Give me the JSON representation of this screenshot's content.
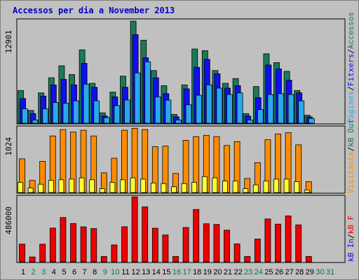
{
  "title": "Accessos per dia a November 2013",
  "colors": {
    "title": "#0000cc",
    "frame_bg": "#c0c0c0",
    "panel_bg": "#c0c0c0",
    "grid": "#9a9a9a",
    "weekday_label": "#000000",
    "weekend_label": "#008040",
    "visits": "#ff8c00",
    "unique_visitors": "#ffff33",
    "pages": "#2aa8ee",
    "hits": "#1010ee",
    "accessos": "#1a7a5a",
    "bandwidth": "#ee0000"
  },
  "right_legend": {
    "panel1": [
      {
        "text": "Pàgines",
        "color": "#2aa8ee"
      },
      {
        "text": "/",
        "color": "#000000"
      },
      {
        "text": "Fitxers",
        "color": "#1010ee"
      },
      {
        "text": "/",
        "color": "#000000"
      },
      {
        "text": "Accessos",
        "color": "#1a7a5a"
      }
    ],
    "panel2": [
      {
        "text": "Visitants",
        "color": "#ff8c00"
      },
      {
        "text": "/",
        "color": "#000000"
      },
      {
        "text": "kB Out",
        "color": "#1a7a5a"
      }
    ],
    "panel3": [
      {
        "text": "kB In",
        "color": "#1010ee"
      },
      {
        "text": "/",
        "color": "#000000"
      },
      {
        "text": "kB F",
        "color": "#ee0000"
      }
    ]
  },
  "chart_data": [
    {
      "type": "bar",
      "panel": "accessos",
      "ylim": [
        0,
        12901
      ],
      "ytick_label": "12901",
      "categories": [
        "1",
        "2",
        "3",
        "4",
        "5",
        "6",
        "7",
        "8",
        "9",
        "10",
        "11",
        "12",
        "13",
        "14",
        "15",
        "16",
        "17",
        "18",
        "19",
        "20",
        "21",
        "22",
        "23",
        "24",
        "25",
        "26",
        "27",
        "28",
        "29",
        "30",
        "31"
      ],
      "weekend": [
        false,
        true,
        true,
        false,
        false,
        false,
        false,
        false,
        true,
        true,
        false,
        false,
        false,
        false,
        false,
        true,
        true,
        false,
        false,
        false,
        false,
        false,
        true,
        true,
        false,
        false,
        false,
        false,
        false,
        true,
        true
      ],
      "series": [
        {
          "key": "accessos",
          "values": [
            4100,
            1600,
            3800,
            5700,
            7200,
            6100,
            9200,
            5000,
            1300,
            3900,
            5900,
            12800,
            10400,
            6600,
            4700,
            1100,
            4800,
            9300,
            9100,
            6600,
            5000,
            5600,
            1200,
            4600,
            8700,
            7600,
            6500,
            4100,
            1000,
            0,
            0
          ]
        },
        {
          "key": "hits",
          "values": [
            3100,
            1200,
            3400,
            4800,
            5500,
            4800,
            7500,
            4500,
            900,
            3300,
            4500,
            11100,
            8200,
            5700,
            3700,
            800,
            4300,
            7000,
            8000,
            6200,
            4400,
            4700,
            900,
            3200,
            7300,
            6800,
            5400,
            3800,
            800,
            0,
            0
          ]
        },
        {
          "key": "pages",
          "values": [
            1800,
            400,
            1800,
            2600,
            2500,
            2800,
            4900,
            2800,
            700,
            2200,
            2900,
            6300,
            7700,
            3300,
            2900,
            400,
            2300,
            3500,
            4800,
            4400,
            3600,
            3800,
            400,
            1700,
            3600,
            3700,
            3600,
            2800,
            600,
            0,
            0
          ]
        }
      ]
    },
    {
      "type": "bar",
      "panel": "visitants",
      "ylim": [
        0,
        1024
      ],
      "ytick_label": "1024",
      "categories": [
        "1",
        "2",
        "3",
        "4",
        "5",
        "6",
        "7",
        "8",
        "9",
        "10",
        "11",
        "12",
        "13",
        "14",
        "15",
        "16",
        "17",
        "18",
        "19",
        "20",
        "21",
        "22",
        "23",
        "24",
        "25",
        "26",
        "27",
        "28",
        "29",
        "30",
        "31"
      ],
      "series": [
        {
          "key": "visits",
          "values": [
            530,
            190,
            490,
            890,
            990,
            950,
            980,
            890,
            310,
            540,
            980,
            1010,
            990,
            720,
            730,
            300,
            820,
            880,
            900,
            880,
            740,
            800,
            220,
            470,
            830,
            920,
            940,
            750,
            170,
            0,
            0
          ]
        },
        {
          "key": "unique_visitors",
          "values": [
            160,
            70,
            130,
            190,
            200,
            210,
            230,
            200,
            60,
            160,
            200,
            230,
            210,
            150,
            140,
            90,
            140,
            160,
            250,
            230,
            180,
            180,
            60,
            120,
            180,
            210,
            210,
            170,
            40,
            0,
            0
          ]
        }
      ]
    },
    {
      "type": "bar",
      "panel": "bandwidth",
      "ylim": [
        0,
        486000
      ],
      "ytick_label": "486000",
      "categories": [
        "1",
        "2",
        "3",
        "4",
        "5",
        "6",
        "7",
        "8",
        "9",
        "10",
        "11",
        "12",
        "13",
        "14",
        "15",
        "16",
        "17",
        "18",
        "19",
        "20",
        "21",
        "22",
        "23",
        "24",
        "25",
        "26",
        "27",
        "28",
        "29",
        "30",
        "31"
      ],
      "series": [
        {
          "key": "bandwidth",
          "values": [
            132000,
            36000,
            131000,
            252000,
            331000,
            286000,
            261000,
            248000,
            40000,
            126000,
            262000,
            485000,
            410000,
            251000,
            200000,
            40000,
            256000,
            391000,
            284000,
            279000,
            236000,
            134000,
            40000,
            170000,
            320000,
            281000,
            343000,
            276000,
            40000,
            0,
            0
          ]
        }
      ]
    }
  ]
}
